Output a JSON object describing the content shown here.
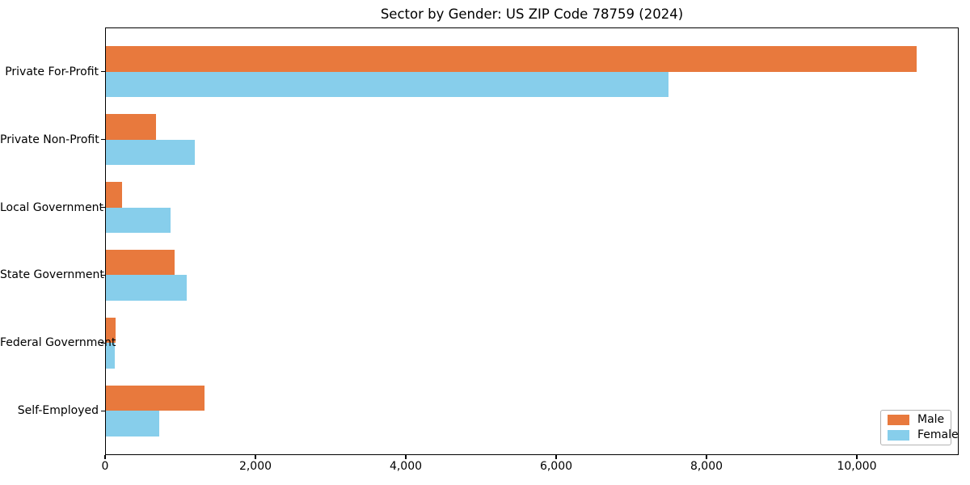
{
  "title": "Sector by Gender: US ZIP Code 78759 (2024)",
  "chart_data": {
    "type": "bar",
    "orientation": "horizontal",
    "title": "Sector by Gender: US ZIP Code 78759 (2024)",
    "xlabel": "",
    "ylabel": "",
    "categories": [
      "Private For-Profit",
      "Private Non-Profit",
      "Local Government",
      "State Government",
      "Federal Government",
      "Self-Employed"
    ],
    "series": [
      {
        "name": "Male",
        "color": "#e8793d",
        "values": [
          10800,
          680,
          230,
          920,
          140,
          1320
        ]
      },
      {
        "name": "Female",
        "color": "#87ceeb",
        "values": [
          7500,
          1190,
          870,
          1090,
          130,
          720
        ]
      }
    ],
    "xlim": [
      0,
      11355
    ],
    "ylim": [
      -0.65,
      5.65
    ],
    "bar_height_units": 0.375,
    "xticks": [
      0,
      2000,
      4000,
      6000,
      8000,
      10000
    ],
    "xtick_labels": [
      "0",
      "2,000",
      "4,000",
      "6,000",
      "8,000",
      "10,000"
    ],
    "grid": false,
    "legend_position": "lower right",
    "axis_color": "#000000",
    "background_color": "#ffffff"
  },
  "legend": {
    "items": [
      {
        "label": "Male",
        "color": "#e8793d"
      },
      {
        "label": "Female",
        "color": "#87ceeb"
      }
    ]
  }
}
